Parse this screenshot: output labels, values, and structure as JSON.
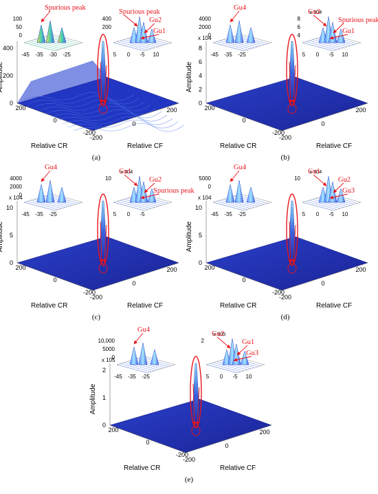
{
  "chart_data": [
    {
      "id": "a",
      "type": "surface3d",
      "panel_label": "(a)",
      "xlabel": "Relative CR",
      "ylabel": "Relative CF",
      "zlabel": "Amplitude",
      "x_ticks": [
        "200",
        "0",
        "-200"
      ],
      "y_ticks": [
        "-200",
        "0",
        "200"
      ],
      "z_ticks": [
        "0",
        "200",
        "400"
      ],
      "z_multiplier": "",
      "insets": [
        {
          "side": "left",
          "x_ticks": [
            "-45",
            "-35",
            "-30",
            "-25"
          ],
          "z_ticks": [
            "100",
            "50",
            "0"
          ],
          "multiplier": ""
        },
        {
          "side": "right",
          "x_ticks": [
            "5",
            "0",
            "-5",
            "10"
          ],
          "z_ticks": [
            "400",
            "200"
          ],
          "multiplier": ""
        }
      ],
      "annotations": [
        "Spurious peak",
        "Spurious peak",
        "Gu2",
        "Gu1"
      ]
    },
    {
      "id": "b",
      "type": "surface3d",
      "panel_label": "(b)",
      "xlabel": "Relative CR",
      "ylabel": "Relative CF",
      "zlabel": "Amplitude",
      "x_ticks": [
        "200",
        "0",
        "-200"
      ],
      "y_ticks": [
        "-200",
        "0",
        "200"
      ],
      "z_ticks": [
        "0",
        "2",
        "4",
        "6",
        "8"
      ],
      "z_multiplier": "x 10^4",
      "insets": [
        {
          "side": "left",
          "x_ticks": [
            "-45",
            "-35",
            "-25"
          ],
          "z_ticks": [
            "4000",
            "2000",
            "0"
          ],
          "multiplier": ""
        },
        {
          "side": "right",
          "x_ticks": [
            "5",
            "0",
            "-5",
            "10"
          ],
          "z_ticks": [
            "8",
            "6",
            "4"
          ],
          "multiplier": "x 10^4"
        }
      ],
      "annotations": [
        "Gu4",
        "Gu2",
        "Spurious peak",
        "Gu1"
      ]
    },
    {
      "id": "c",
      "type": "surface3d",
      "panel_label": "(c)",
      "xlabel": "Relative CR",
      "ylabel": "Relative CF",
      "zlabel": "Amplitude",
      "x_ticks": [
        "200",
        "0",
        "-200"
      ],
      "y_ticks": [
        "-200",
        "0",
        "200"
      ],
      "z_ticks": [
        "0",
        "5",
        "10"
      ],
      "z_multiplier": "x 10^4",
      "insets": [
        {
          "side": "left",
          "x_ticks": [
            "-45",
            "-35",
            "-25"
          ],
          "z_ticks": [
            "4000",
            "2000",
            "0"
          ],
          "multiplier": ""
        },
        {
          "side": "right",
          "x_ticks": [
            "5",
            "0",
            "-5"
          ],
          "z_ticks": [
            "10"
          ],
          "multiplier": "x 10^4"
        }
      ],
      "annotations": [
        "Gu4",
        "Gu1",
        "Gu2",
        "Spurious peak"
      ]
    },
    {
      "id": "d",
      "type": "surface3d",
      "panel_label": "(d)",
      "xlabel": "Relative CR",
      "ylabel": "Relative CF",
      "zlabel": "Amplitude",
      "x_ticks": [
        "200",
        "0",
        "-200"
      ],
      "y_ticks": [
        "-200",
        "0",
        "200"
      ],
      "z_ticks": [
        "0",
        "5",
        "10"
      ],
      "z_multiplier": "x 10^4",
      "insets": [
        {
          "side": "left",
          "x_ticks": [
            "-45",
            "-35",
            "-25"
          ],
          "z_ticks": [
            "5000",
            "0"
          ],
          "multiplier": ""
        },
        {
          "side": "right",
          "x_ticks": [
            "5",
            "0",
            "-5",
            "10"
          ],
          "z_ticks": [
            "10"
          ],
          "multiplier": "x 10^4"
        }
      ],
      "annotations": [
        "Gu4",
        "Gu1",
        "Gu2",
        "Gu3"
      ]
    },
    {
      "id": "e",
      "type": "surface3d",
      "panel_label": "(e)",
      "xlabel": "Relative CR",
      "ylabel": "Relative CF",
      "zlabel": "Amplitude",
      "x_ticks": [
        "200",
        "0",
        "-200"
      ],
      "y_ticks": [
        "-200",
        "0",
        "200"
      ],
      "z_ticks": [
        "0",
        "1",
        "2"
      ],
      "z_multiplier": "x 10^5",
      "insets": [
        {
          "side": "left",
          "x_ticks": [
            "-45",
            "-35",
            "-25"
          ],
          "z_ticks": [
            "10,000",
            "5000",
            "0"
          ],
          "multiplier": ""
        },
        {
          "side": "right",
          "x_ticks": [
            "5",
            "0",
            "-5",
            "10"
          ],
          "z_ticks": [
            "2"
          ],
          "multiplier": "x 10^5"
        }
      ],
      "annotations": [
        "Gu4",
        "Gu2",
        "Gu1",
        "Gu3"
      ]
    }
  ],
  "colors": {
    "surface_dark": "#1e2aa8",
    "surface_mid": "#2f4cd6",
    "annotation": "#e8141b",
    "axis": "#555555"
  }
}
